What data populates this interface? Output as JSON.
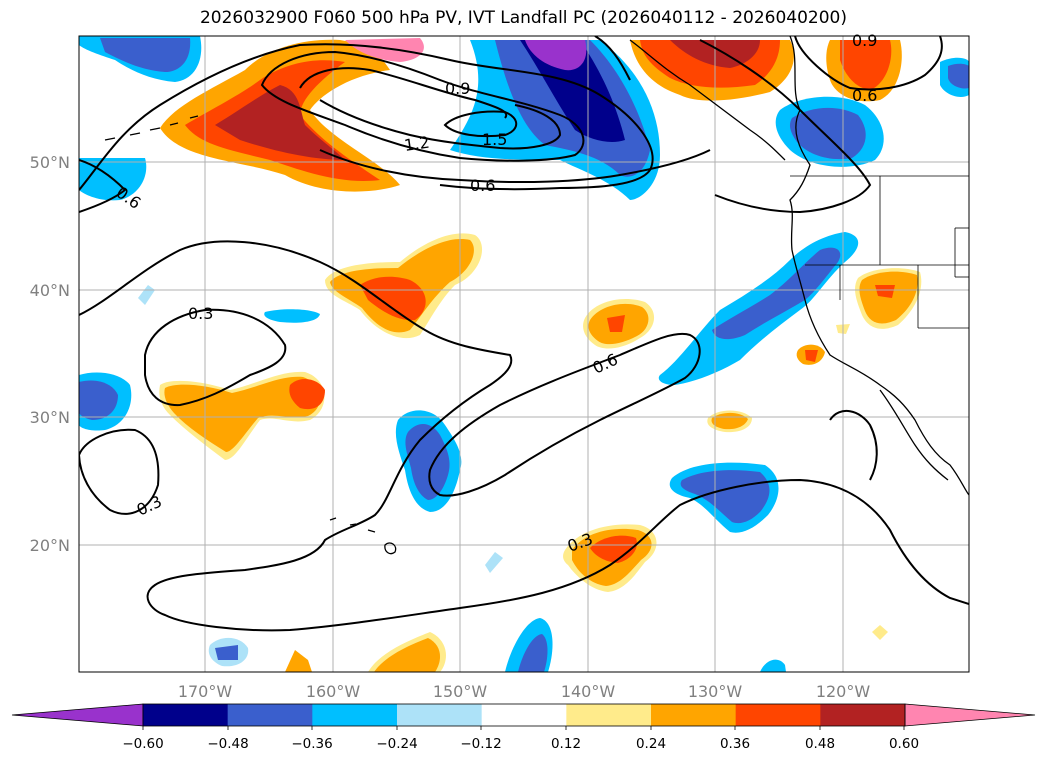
{
  "title": "2026032900 F060 500 hPa PV, IVT Landfall PC (2026040112 - 2026040200)",
  "lat_labels": [
    "50°N",
    "40°N",
    "30°N",
    "20°N"
  ],
  "lon_labels": [
    "170°W",
    "160°W",
    "150°W",
    "140°W",
    "130°W",
    "120°W"
  ],
  "contour_labels": [
    "0.9",
    "0.9",
    "0.6",
    "1.2",
    "1.5",
    "0.6",
    "0.6",
    "0.3",
    "0.6",
    "0.3",
    "0.3"
  ],
  "colorbar": {
    "colors": [
      "#9932cc",
      "#00008b",
      "#3a5fcd",
      "#00bfff",
      "#ade2f8",
      "#ffffff",
      "#ffeb8b",
      "#ffa500",
      "#ff4500",
      "#b22222",
      "#ff85b0"
    ],
    "labels": [
      "−0.60",
      "−0.48",
      "−0.36",
      "−0.24",
      "−0.12",
      "0.12",
      "0.24",
      "0.36",
      "0.48",
      "0.60"
    ]
  }
}
